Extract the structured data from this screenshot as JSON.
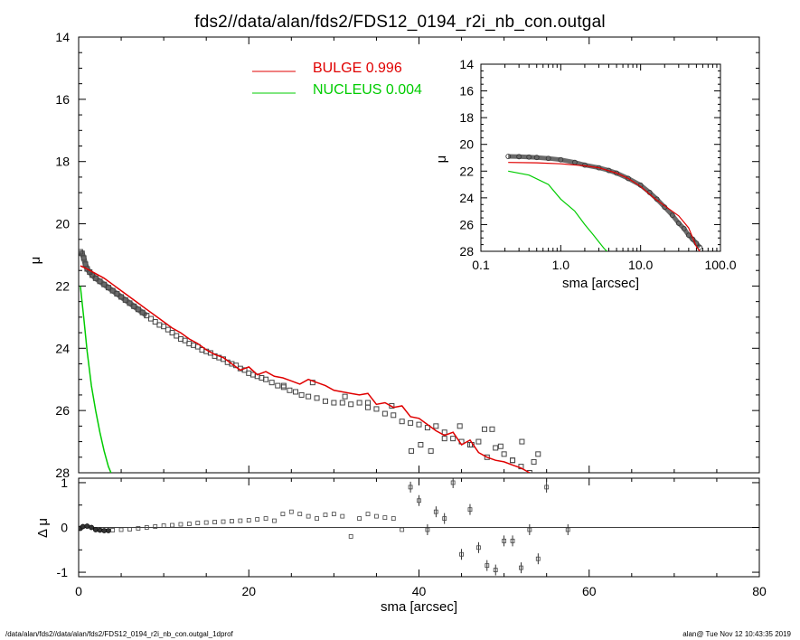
{
  "title": "fds2//data/alan/fds2/FDS12_0194_r2i_nb_con.outgal",
  "footer": {
    "left": "/data/alan/fds2//data/alan/fds2/FDS12_0194_r2i_nb_con.outgal_1dprof",
    "right": "alan@  Tue Nov 12 10:43:35 2019"
  },
  "colors": {
    "bulge": "#e00000",
    "nucleus": "#00cc00",
    "data": "#555555",
    "axis": "#000000"
  },
  "chart_data": [
    {
      "type": "scatter",
      "panel": "main",
      "xlabel": "",
      "ylabel": "μ",
      "xlim": [
        0,
        80
      ],
      "ylim": [
        28,
        14
      ],
      "y_inverted": true,
      "xticks": [
        "0",
        "20",
        "40",
        "60",
        "80"
      ],
      "yticks": [
        "14",
        "16",
        "18",
        "20",
        "22",
        "24",
        "26",
        "28"
      ],
      "legend": [
        {
          "name": "BULGE",
          "value": "0.996",
          "color": "#e00000"
        },
        {
          "name": "NUCLEUS",
          "value": "0.004",
          "color": "#00cc00"
        }
      ],
      "series": [
        {
          "name": "data",
          "style": "open-square-markers",
          "x": [
            0.2,
            0.4,
            0.6,
            0.8,
            1.0,
            1.3,
            1.6,
            2.0,
            2.5,
            3.0,
            3.5,
            4.0,
            4.5,
            5.0,
            5.5,
            6.0,
            6.5,
            7.0,
            7.5,
            8.0,
            8.5,
            9.0,
            9.5,
            10.0,
            10.5,
            11.0,
            11.5,
            12.0,
            12.5,
            13.0,
            13.5,
            14.0,
            14.5,
            15.0,
            15.5,
            16.0,
            16.5,
            17.0,
            17.5,
            18.0,
            18.5,
            19.0,
            19.5,
            20.0,
            20.5,
            21.0,
            21.5,
            22.0,
            22.7,
            23.4,
            24.1,
            24.8,
            25.5,
            26.2,
            27.0,
            28.0,
            29.0,
            30.0,
            31.0,
            32.0,
            33.0,
            34.0,
            35.0,
            36.0,
            37.0,
            38.0,
            39.0,
            40.0,
            41.0,
            42.0,
            43.0,
            44.0,
            45.0,
            46.0,
            47.0,
            48.0,
            49.0,
            50.0,
            51.0,
            52.0,
            53.0,
            54.0
          ],
          "y": [
            20.9,
            20.95,
            21.1,
            21.3,
            21.45,
            21.55,
            21.65,
            21.75,
            21.85,
            21.95,
            22.05,
            22.15,
            22.25,
            22.35,
            22.45,
            22.55,
            22.65,
            22.75,
            22.85,
            22.95,
            23.05,
            23.15,
            23.25,
            23.3,
            23.4,
            23.5,
            23.6,
            23.7,
            23.75,
            23.85,
            23.9,
            23.95,
            24.05,
            24.1,
            24.15,
            24.25,
            24.3,
            24.35,
            24.45,
            24.5,
            24.55,
            24.65,
            24.7,
            24.8,
            24.85,
            24.9,
            24.95,
            25.0,
            25.1,
            25.2,
            25.25,
            25.35,
            25.4,
            25.5,
            25.55,
            25.6,
            25.7,
            25.75,
            25.75,
            25.8,
            25.75,
            25.9,
            25.95,
            26.1,
            26.15,
            26.35,
            26.4,
            26.45,
            26.55,
            26.5,
            26.7,
            26.9,
            27.0,
            27.1,
            27.0,
            27.5,
            27.2,
            27.4,
            27.6,
            27.8,
            28.0,
            27.4
          ],
          "scatter_x": [
            24.1,
            27.5,
            31.3,
            34.0,
            36.8,
            39.1,
            40.2,
            41.4,
            43.0,
            44.8,
            46.2,
            47.7,
            48.6,
            49.6,
            51.0,
            52.1,
            53.5
          ],
          "scatter_y": [
            25.2,
            25.1,
            25.55,
            25.75,
            25.85,
            27.3,
            27.1,
            27.3,
            26.9,
            26.5,
            27.1,
            26.6,
            26.6,
            27.15,
            27.6,
            27.0,
            27.65
          ]
        },
        {
          "name": "BULGE",
          "style": "line",
          "x": [
            0.2,
            1.0,
            2.0,
            3.0,
            4.0,
            5.0,
            6.0,
            7.0,
            8.0,
            9.0,
            10.0,
            11.0,
            12.0,
            13.0,
            14.0,
            15.0,
            16.0,
            17.0,
            18.0,
            19.0,
            20.0,
            21.0,
            22.0,
            23.0,
            24.0,
            25.0,
            26.0,
            27.0,
            28.0,
            29.0,
            30.0,
            31.0,
            32.0,
            33.0,
            34.0,
            35.0,
            36.0,
            37.0,
            38.0,
            39.0,
            40.0,
            41.0,
            42.0,
            43.0,
            44.0,
            45.0,
            46.0,
            47.0,
            48.0,
            49.0,
            50.0,
            51.0,
            52.0,
            53.0
          ],
          "y": [
            21.35,
            21.45,
            21.6,
            21.75,
            21.95,
            22.15,
            22.35,
            22.55,
            22.75,
            22.95,
            23.15,
            23.35,
            23.5,
            23.7,
            23.85,
            24.05,
            24.2,
            24.3,
            24.5,
            24.7,
            24.6,
            24.85,
            24.75,
            24.9,
            24.95,
            25.05,
            25.15,
            25.0,
            25.1,
            25.2,
            25.35,
            25.4,
            25.45,
            25.5,
            25.45,
            25.8,
            25.75,
            25.9,
            25.85,
            26.2,
            26.25,
            26.45,
            26.65,
            26.8,
            26.7,
            27.1,
            26.95,
            27.35,
            27.5,
            27.6,
            27.65,
            27.75,
            27.85,
            28.0
          ]
        },
        {
          "name": "NUCLEUS",
          "style": "line",
          "x": [
            0.2,
            0.6,
            1.0,
            1.5,
            2.0,
            2.5,
            3.0,
            3.5,
            3.8
          ],
          "y": [
            22.0,
            23.0,
            24.1,
            25.2,
            26.0,
            26.7,
            27.3,
            27.8,
            28.0
          ]
        }
      ]
    },
    {
      "type": "scatter",
      "panel": "inset",
      "xlabel": "sma [arcsec]",
      "ylabel": "μ",
      "xscale": "log",
      "xlim": [
        0.1,
        100.0
      ],
      "ylim": [
        28,
        14
      ],
      "y_inverted": true,
      "xticks": [
        "0.1",
        "1.0",
        "10.0",
        "100.0"
      ],
      "yticks": [
        "14",
        "16",
        "18",
        "20",
        "22",
        "24",
        "26",
        "28"
      ],
      "series": [
        {
          "name": "data",
          "style": "open-circle-markers",
          "x": [
            0.22,
            0.3,
            0.4,
            0.5,
            0.7,
            1.0,
            1.5,
            2.0,
            3.0,
            4.0,
            5.0,
            7.0,
            10.0,
            13.0,
            16.0,
            20.0,
            25.0,
            30.0,
            35.0,
            40.0,
            45.0,
            50.0,
            55.0
          ],
          "y": [
            20.9,
            20.92,
            20.95,
            20.98,
            21.05,
            21.15,
            21.35,
            21.55,
            21.75,
            21.95,
            22.15,
            22.55,
            23.05,
            23.6,
            24.1,
            24.7,
            25.3,
            25.9,
            26.3,
            26.8,
            27.1,
            27.4,
            27.7
          ]
        },
        {
          "name": "BULGE",
          "style": "line",
          "x": [
            0.22,
            0.5,
            1.0,
            2.0,
            3.0,
            5.0,
            7.0,
            10.0,
            15.0,
            20.0,
            30.0,
            40.0,
            50.0,
            55.0
          ],
          "y": [
            21.35,
            21.38,
            21.45,
            21.6,
            21.75,
            22.15,
            22.55,
            23.15,
            24.05,
            24.6,
            25.35,
            26.25,
            27.65,
            28.0
          ]
        },
        {
          "name": "NUCLEUS",
          "style": "line",
          "x": [
            0.22,
            0.4,
            0.7,
            1.0,
            1.5,
            2.0,
            2.5,
            3.0,
            3.5,
            3.8
          ],
          "y": [
            22.0,
            22.3,
            23.0,
            24.1,
            25.0,
            26.0,
            26.7,
            27.3,
            27.8,
            28.0
          ]
        }
      ]
    },
    {
      "type": "scatter",
      "panel": "residual",
      "xlabel": "sma [arcsec]",
      "ylabel": "Δ μ",
      "xlim": [
        0,
        80
      ],
      "ylim": [
        -1.1,
        1.1
      ],
      "xticks": [
        "0",
        "20",
        "40",
        "60",
        "80"
      ],
      "yticks": [
        "-1",
        "0",
        "1"
      ],
      "series": [
        {
          "name": "residual",
          "style": "markers-with-errorbars",
          "x": [
            0.2,
            0.5,
            1.0,
            1.5,
            2.0,
            2.5,
            3.0,
            3.5,
            4.0,
            5.0,
            6.0,
            7.0,
            8.0,
            9.0,
            10.0,
            11.0,
            12.0,
            13.0,
            14.0,
            15.0,
            16.0,
            17.0,
            18.0,
            19.0,
            20.0,
            21.0,
            22.0,
            23.0,
            24.0,
            25.0,
            26.0,
            27.0,
            28.0,
            29.0,
            30.0,
            31.0,
            32.0,
            33.0,
            34.0,
            35.0,
            36.0,
            37.0,
            38.0,
            39.0,
            40.0,
            41.0,
            42.0,
            43.0,
            44.0,
            45.0,
            46.0,
            47.0,
            48.0,
            49.0,
            50.0,
            51.0,
            52.0,
            53.0,
            54.0,
            55.0,
            57.5
          ],
          "y": [
            -0.02,
            0.02,
            0.03,
            0.0,
            -0.05,
            -0.06,
            -0.07,
            -0.07,
            -0.06,
            -0.05,
            -0.04,
            -0.02,
            0.0,
            0.02,
            0.04,
            0.05,
            0.07,
            0.08,
            0.1,
            0.11,
            0.12,
            0.13,
            0.14,
            0.15,
            0.16,
            0.18,
            0.2,
            0.15,
            0.3,
            0.35,
            0.3,
            0.25,
            0.2,
            0.28,
            0.3,
            0.25,
            -0.2,
            0.2,
            0.3,
            0.25,
            0.22,
            0.2,
            -0.05,
            0.9,
            0.6,
            -0.05,
            0.35,
            0.2,
            1.0,
            -0.6,
            0.4,
            -0.45,
            -0.85,
            -0.95,
            -0.3,
            -0.3,
            -0.9,
            -0.05,
            -0.7,
            0.9,
            -0.05
          ]
        }
      ]
    }
  ]
}
